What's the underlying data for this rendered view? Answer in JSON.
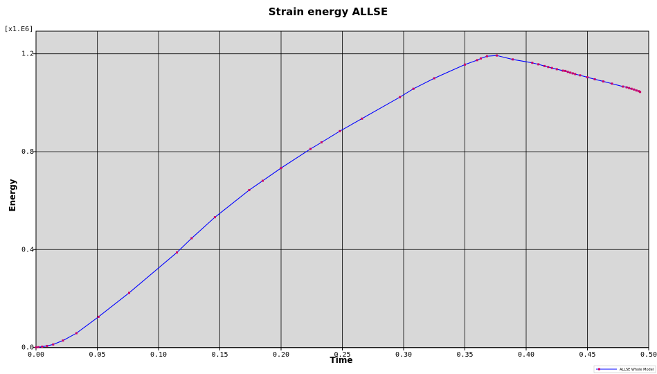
{
  "chart_data": {
    "type": "line",
    "title": "Strain energy  ALLSE",
    "xlabel": "Time",
    "ylabel": "Energy",
    "y_scale_note": "[x1.E6]",
    "xlim": [
      0,
      0.5
    ],
    "ylim": [
      0,
      1.2
    ],
    "x_ticks": [
      "0.00",
      "0.05",
      "0.10",
      "0.15",
      "0.20",
      "0.25",
      "0.30",
      "0.35",
      "0.40",
      "0.45",
      "0.50"
    ],
    "y_ticks": [
      "0.0",
      "0.4",
      "0.8",
      "1.2"
    ],
    "grid": true,
    "legend_position": "bottom-right",
    "line_color": "#0000ff",
    "marker_color": "#cc0066",
    "background_color": "#d8d8d8",
    "series": [
      {
        "name": "ALLSE Whole Model",
        "x": [
          0.0,
          0.002,
          0.005,
          0.009,
          0.014,
          0.022,
          0.033,
          0.051,
          0.076,
          0.115,
          0.127,
          0.146,
          0.174,
          0.185,
          0.2,
          0.224,
          0.233,
          0.248,
          0.266,
          0.297,
          0.308,
          0.325,
          0.35,
          0.36,
          0.363,
          0.368,
          0.376,
          0.389,
          0.405,
          0.41,
          0.415,
          0.418,
          0.421,
          0.425,
          0.43,
          0.432,
          0.434,
          0.436,
          0.438,
          0.44,
          0.444,
          0.45,
          0.456,
          0.463,
          0.47,
          0.479,
          0.482,
          0.484,
          0.486,
          0.488,
          0.49,
          0.492,
          0.493
        ],
        "y": [
          0.0,
          0.001,
          0.003,
          0.006,
          0.012,
          0.028,
          0.058,
          0.125,
          0.223,
          0.388,
          0.446,
          0.532,
          0.643,
          0.681,
          0.733,
          0.811,
          0.838,
          0.884,
          0.935,
          1.023,
          1.057,
          1.1,
          1.156,
          1.174,
          1.181,
          1.19,
          1.193,
          1.177,
          1.163,
          1.157,
          1.15,
          1.146,
          1.142,
          1.137,
          1.131,
          1.13,
          1.126,
          1.123,
          1.12,
          1.117,
          1.112,
          1.104,
          1.096,
          1.087,
          1.078,
          1.066,
          1.063,
          1.06,
          1.057,
          1.054,
          1.05,
          1.047,
          1.044
        ]
      }
    ]
  }
}
